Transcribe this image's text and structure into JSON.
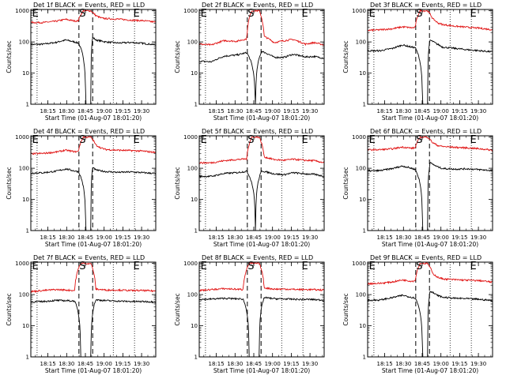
{
  "chart_data": {
    "type": "line",
    "xlabel": "Start Time (01-Aug-07 18:01:20)",
    "ylabel": "Counts/sec",
    "x_ticks": [
      "18:15",
      "18:30",
      "18:45",
      "19:00",
      "19:15",
      "19:30"
    ],
    "x_tick_minutes": [
      13.67,
      28.67,
      43.67,
      58.67,
      73.67,
      88.67
    ],
    "x_range_minutes": [
      0,
      100
    ],
    "y_scale": "log",
    "y_ticks": [
      "1",
      "10",
      "100",
      "1000"
    ],
    "y_range": [
      1,
      1100
    ],
    "event_lines_minutes": [
      38.5,
      49.5
    ],
    "dotted_lines_minutes": [
      5,
      66,
      83
    ],
    "markers": [
      {
        "label": "E",
        "minute": 1
      },
      {
        "label": "S",
        "minute": 38.8
      },
      {
        "label": "E",
        "minute": 82
      }
    ],
    "series_colors": {
      "events": "#000000",
      "lld": "#e01010"
    },
    "panels": [
      {
        "title": "Det 1f BLACK = Events, RED = LLD",
        "series": [
          {
            "color": "black",
            "x": [
              0,
              10,
              20,
              28,
              35,
              38,
              44,
              48,
              49.5,
              52,
              60,
              70,
              80,
              90,
              100
            ],
            "y": [
              82,
              85,
              96,
              115,
              100,
              92,
              0,
              0,
              140,
              115,
              100,
              92,
              96,
              90,
              80
            ]
          },
          {
            "color": "red",
            "x": [
              0,
              10,
              20,
              28,
              35,
              38,
              42,
              48,
              52,
              56,
              60,
              70,
              80,
              90,
              100
            ],
            "y": [
              420,
              420,
              460,
              530,
              470,
              480,
              1000,
              1000,
              700,
              590,
              560,
              540,
              500,
              480,
              430
            ]
          }
        ]
      },
      {
        "title": "Det 2f BLACK = Events, RED = LLD",
        "series": [
          {
            "color": "black",
            "x": [
              0,
              10,
              20,
              30,
              38,
              45,
              50,
              60,
              68,
              75,
              85,
              92,
              100
            ],
            "y": [
              24,
              23,
              35,
              38,
              45,
              0,
              50,
              32,
              32,
              40,
              33,
              34,
              30
            ]
          },
          {
            "color": "red",
            "x": [
              0,
              10,
              20,
              30,
              38,
              42,
              48,
              52,
              60,
              68,
              75,
              85,
              92,
              100
            ],
            "y": [
              85,
              80,
              110,
              105,
              125,
              1000,
              1000,
              150,
              95,
              110,
              120,
              85,
              95,
              80
            ]
          }
        ]
      },
      {
        "title": "Det 3f BLACK = Events, RED = LLD",
        "series": [
          {
            "color": "black",
            "x": [
              0,
              10,
              20,
              28,
              35,
              38,
              44,
              48,
              50,
              55,
              60,
              70,
              80,
              90,
              100
            ],
            "y": [
              52,
              52,
              62,
              80,
              68,
              66,
              0,
              0,
              115,
              88,
              68,
              62,
              56,
              52,
              48
            ]
          },
          {
            "color": "red",
            "x": [
              0,
              10,
              20,
              28,
              35,
              38,
              42,
              48,
              52,
              56,
              60,
              70,
              80,
              90,
              100
            ],
            "y": [
              235,
              245,
              265,
              305,
              285,
              290,
              1000,
              1000,
              560,
              410,
              360,
              320,
              295,
              275,
              245
            ]
          }
        ]
      },
      {
        "title": "Det 4f BLACK = Events, RED = LLD",
        "series": [
          {
            "color": "black",
            "x": [
              0,
              10,
              20,
              28,
              35,
              38,
              44,
              48,
              49.5,
              52,
              60,
              70,
              80,
              90,
              100
            ],
            "y": [
              70,
              72,
              80,
              95,
              82,
              78,
              0,
              0,
              105,
              88,
              78,
              74,
              76,
              72,
              68
            ]
          },
          {
            "color": "red",
            "x": [
              0,
              10,
              20,
              28,
              35,
              38,
              42,
              48,
              52,
              56,
              60,
              70,
              80,
              90,
              100
            ],
            "y": [
              290,
              300,
              330,
              380,
              340,
              345,
              1000,
              1000,
              560,
              450,
              400,
              380,
              370,
              355,
              320
            ]
          }
        ]
      },
      {
        "title": "Det 5f BLACK = Events, RED = LLD",
        "series": [
          {
            "color": "black",
            "x": [
              0,
              10,
              20,
              30,
              38,
              45,
              50,
              60,
              68,
              75,
              85,
              92,
              100
            ],
            "y": [
              55,
              55,
              68,
              72,
              80,
              0,
              82,
              66,
              62,
              72,
              66,
              64,
              55
            ]
          },
          {
            "color": "red",
            "x": [
              0,
              10,
              20,
              30,
              38,
              42,
              48,
              52,
              60,
              68,
              75,
              85,
              92,
              100
            ],
            "y": [
              150,
              150,
              175,
              190,
              200,
              1000,
              1000,
              230,
              190,
              180,
              195,
              180,
              175,
              150
            ]
          }
        ]
      },
      {
        "title": "Det 6f BLACK = Events, RED = LLD",
        "series": [
          {
            "color": "black",
            "x": [
              0,
              10,
              20,
              28,
              35,
              38,
              44,
              48,
              50,
              55,
              60,
              70,
              80,
              90,
              100
            ],
            "y": [
              82,
              84,
              98,
              118,
              100,
              92,
              0,
              0,
              150,
              115,
              98,
              94,
              96,
              90,
              84
            ]
          },
          {
            "color": "red",
            "x": [
              0,
              10,
              20,
              28,
              35,
              38,
              42,
              48,
              52,
              56,
              60,
              70,
              80,
              90,
              100
            ],
            "y": [
              390,
              395,
              420,
              480,
              440,
              450,
              1000,
              1000,
              660,
              540,
              500,
              470,
              450,
              420,
              380
            ]
          }
        ]
      },
      {
        "title": "Det 7f BLACK = Events, RED = LLD",
        "series": [
          {
            "color": "black",
            "x": [
              0,
              10,
              20,
              28,
              35,
              40,
              48,
              52,
              60,
              70,
              80,
              90,
              100
            ],
            "y": [
              58,
              60,
              65,
              64,
              62,
              0,
              0,
              68,
              64,
              62,
              60,
              60,
              58
            ]
          },
          {
            "color": "red",
            "x": [
              0,
              10,
              20,
              28,
              35,
              40,
              48,
              52,
              60,
              70,
              80,
              90,
              100
            ],
            "y": [
              125,
              135,
              145,
              140,
              135,
              1000,
              1000,
              150,
              140,
              140,
              135,
              135,
              130
            ]
          }
        ]
      },
      {
        "title": "Det 8f BLACK = Events, RED = LLD",
        "series": [
          {
            "color": "black",
            "x": [
              0,
              10,
              20,
              28,
              35,
              40,
              48,
              52,
              60,
              70,
              80,
              90,
              100
            ],
            "y": [
              70,
              72,
              76,
              74,
              72,
              0,
              0,
              80,
              74,
              72,
              70,
              70,
              66
            ]
          },
          {
            "color": "red",
            "x": [
              0,
              10,
              20,
              28,
              35,
              40,
              48,
              52,
              60,
              70,
              80,
              90,
              100
            ],
            "y": [
              135,
              145,
              155,
              150,
              145,
              1000,
              1000,
              165,
              150,
              150,
              145,
              145,
              140
            ]
          }
        ]
      },
      {
        "title": "Det 9f BLACK = Events, RED = LLD",
        "series": [
          {
            "color": "black",
            "x": [
              0,
              10,
              20,
              28,
              35,
              38,
              44,
              48,
              50,
              55,
              60,
              70,
              80,
              90,
              100
            ],
            "y": [
              66,
              67,
              80,
              95,
              82,
              78,
              0,
              0,
              130,
              98,
              82,
              76,
              74,
              70,
              64
            ]
          },
          {
            "color": "red",
            "x": [
              0,
              10,
              20,
              28,
              35,
              38,
              42,
              48,
              52,
              56,
              60,
              70,
              80,
              90,
              100
            ],
            "y": [
              225,
              230,
              255,
              295,
              270,
              275,
              1000,
              1000,
              480,
              360,
              320,
              300,
              290,
              280,
              250
            ]
          }
        ]
      }
    ]
  }
}
